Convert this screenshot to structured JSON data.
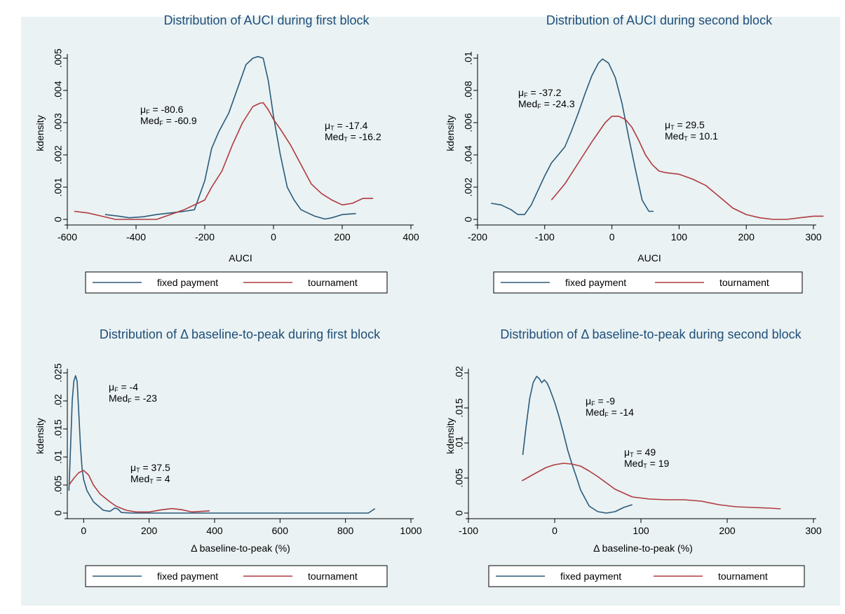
{
  "colors": {
    "fixed": "#2b5a7a",
    "tournament": "#b03a40",
    "background": "#eaf2f3",
    "title": "#1f4e79"
  },
  "chart_data": [
    {
      "type": "line",
      "title": "Distribution of AUCI during first block",
      "xlabel": "AUCI",
      "ylabel": "kdensity",
      "xlim": [
        -600,
        400
      ],
      "ylim": [
        0,
        0.005
      ],
      "xticks": [
        -600,
        -400,
        -200,
        0,
        200,
        400
      ],
      "xtick_labels": [
        "-600",
        "-400",
        "-200",
        "0",
        "200",
        "400"
      ],
      "yticks": [
        0,
        0.001,
        0.002,
        0.003,
        0.004,
        0.005
      ],
      "ytick_labels": [
        "0",
        ".001",
        ".002",
        ".003",
        ".004",
        ".005"
      ],
      "legend": "bottom",
      "series": [
        {
          "name": "fixed payment",
          "color_key": "fixed",
          "x": [
            -490,
            -450,
            -420,
            -380,
            -340,
            -300,
            -260,
            -230,
            -200,
            -180,
            -160,
            -130,
            -100,
            -80,
            -60,
            -45,
            -30,
            -15,
            0,
            20,
            40,
            60,
            80,
            100,
            120,
            150,
            170,
            200,
            240
          ],
          "y": [
            0.00015,
            0.0001,
            5e-05,
            8e-05,
            0.00015,
            0.0002,
            0.00025,
            0.0003,
            0.0012,
            0.0022,
            0.0027,
            0.0033,
            0.0042,
            0.0048,
            0.005,
            0.00505,
            0.005,
            0.0043,
            0.0032,
            0.002,
            0.001,
            0.0006,
            0.0003,
            0.0002,
            0.0001,
            1e-05,
            5e-05,
            0.00015,
            0.00018
          ]
        },
        {
          "name": "tournament",
          "color_key": "tournament",
          "x": [
            -580,
            -540,
            -500,
            -460,
            -420,
            -380,
            -340,
            -300,
            -260,
            -220,
            -200,
            -180,
            -150,
            -120,
            -90,
            -60,
            -40,
            -30,
            -15,
            0,
            20,
            50,
            80,
            110,
            140,
            170,
            200,
            230,
            260,
            290
          ],
          "y": [
            0.00025,
            0.0002,
            0.0001,
            0.0,
            0.0,
            0.0,
            0.0,
            0.00015,
            0.0003,
            0.0005,
            0.0006,
            0.001,
            0.0015,
            0.0023,
            0.003,
            0.0035,
            0.0036,
            0.00362,
            0.0034,
            0.0031,
            0.0028,
            0.0023,
            0.0017,
            0.0011,
            0.0008,
            0.0006,
            0.00045,
            0.0005,
            0.00065,
            0.00065
          ]
        }
      ],
      "annotations": [
        {
          "mu": "μ",
          "sub": "F",
          "val": " = -80.6",
          "med": "Med",
          "msub": "F",
          "mval": " = -60.9"
        },
        {
          "mu": "μ",
          "sub": "T",
          "val": " = -17.4",
          "med": "Med",
          "msub": "T",
          "mval": " = -16.2"
        }
      ]
    },
    {
      "type": "line",
      "title": "Distribution of AUCI during second block",
      "xlabel": "AUCI",
      "ylabel": "kdensity",
      "xlim": [
        -200,
        300
      ],
      "ylim": [
        0,
        0.01
      ],
      "xticks": [
        -200,
        -100,
        0,
        100,
        200,
        300
      ],
      "xtick_labels": [
        "-200",
        "-100",
        "0",
        "100",
        "200",
        "300"
      ],
      "yticks": [
        0,
        0.002,
        0.004,
        0.006,
        0.008,
        0.01
      ],
      "ytick_labels": [
        "0",
        ".002",
        ".004",
        ".006",
        ".008",
        ".01"
      ],
      "legend": "bottom",
      "series": [
        {
          "name": "fixed payment",
          "color_key": "fixed",
          "x": [
            -180,
            -165,
            -150,
            -140,
            -130,
            -120,
            -110,
            -100,
            -90,
            -80,
            -70,
            -60,
            -50,
            -40,
            -30,
            -20,
            -14,
            -5,
            5,
            15,
            25,
            35,
            45,
            55,
            62
          ],
          "y": [
            0.001,
            0.0009,
            0.0006,
            0.0003,
            0.0003,
            0.0009,
            0.0018,
            0.0027,
            0.0035,
            0.004,
            0.0045,
            0.0055,
            0.0066,
            0.0078,
            0.0089,
            0.0097,
            0.00995,
            0.0097,
            0.0088,
            0.0072,
            0.0051,
            0.0031,
            0.0012,
            0.0005,
            0.0005
          ]
        },
        {
          "name": "tournament",
          "color_key": "tournament",
          "x": [
            -90,
            -70,
            -50,
            -30,
            -10,
            0,
            10,
            20,
            30,
            40,
            50,
            60,
            70,
            80,
            100,
            120,
            140,
            160,
            180,
            200,
            220,
            240,
            260,
            280,
            300,
            315
          ],
          "y": [
            0.0012,
            0.0022,
            0.0035,
            0.0048,
            0.006,
            0.0064,
            0.0064,
            0.0062,
            0.0057,
            0.0049,
            0.004,
            0.0034,
            0.003,
            0.0029,
            0.0028,
            0.0025,
            0.0021,
            0.0014,
            0.0007,
            0.0003,
            0.0001,
            0.0,
            0.0,
            0.0001,
            0.0002,
            0.0002
          ]
        }
      ],
      "annotations": [
        {
          "mu": "μ",
          "sub": "F",
          "val": " = -37.2",
          "med": "Med",
          "msub": "F",
          "mval": " = -24.3"
        },
        {
          "mu": "μ",
          "sub": "T",
          "val": " = 29.5",
          "med": "Med",
          "msub": "T",
          "mval": " = 10.1"
        }
      ]
    },
    {
      "type": "line",
      "title": "Distribution of Δ baseline-to-peak during first block",
      "xlabel": "Δ baseline-to-peak (%)",
      "ylabel": "kdensity",
      "xlim": [
        -50,
        1000
      ],
      "ylim": [
        0,
        0.025
      ],
      "xticks": [
        0,
        200,
        400,
        600,
        800,
        1000
      ],
      "xtick_labels": [
        "0",
        "200",
        "400",
        "600",
        "800",
        "1000"
      ],
      "yticks": [
        0,
        0.005,
        0.01,
        0.015,
        0.02,
        0.025
      ],
      "ytick_labels": [
        "0",
        ".005",
        ".01",
        ".015",
        ".02",
        ".025"
      ],
      "legend": "bottom",
      "series": [
        {
          "name": "fixed payment",
          "color_key": "fixed",
          "x": [
            -45,
            -40,
            -35,
            -30,
            -25,
            -20,
            -15,
            -10,
            -5,
            0,
            10,
            20,
            30,
            40,
            60,
            80,
            95,
            105,
            115,
            150,
            200,
            300,
            500,
            700,
            870,
            890
          ],
          "y": [
            0.004,
            0.012,
            0.02,
            0.0235,
            0.0245,
            0.0235,
            0.018,
            0.012,
            0.008,
            0.006,
            0.004,
            0.003,
            0.002,
            0.0015,
            0.0005,
            0.0003,
            0.0009,
            0.0007,
            0.0001,
            0.0,
            0.0,
            0.0,
            0.0,
            0.0,
            0.0,
            0.0008
          ]
        },
        {
          "name": "tournament",
          "color_key": "tournament",
          "x": [
            -45,
            -30,
            -15,
            0,
            15,
            30,
            50,
            80,
            100,
            130,
            160,
            200,
            240,
            270,
            300,
            330,
            360,
            385
          ],
          "y": [
            0.005,
            0.0062,
            0.0072,
            0.0076,
            0.0068,
            0.005,
            0.0034,
            0.002,
            0.0012,
            0.0005,
            0.0002,
            0.0002,
            0.0006,
            0.0008,
            0.0006,
            0.0002,
            0.0003,
            0.0004
          ]
        }
      ],
      "annotations": [
        {
          "mu": "μ",
          "sub": "F",
          "val": " = -4",
          "med": "Med",
          "msub": "F",
          "mval": " = -23"
        },
        {
          "mu": "μ",
          "sub": "T",
          "val": " = 37.5",
          "med": "Med",
          "msub": "T",
          "mval": " = 4"
        }
      ]
    },
    {
      "type": "line",
      "title": "Distribution of Δ baseline-to-peak during second block",
      "xlabel": "Δ baseline-to-peak (%)",
      "ylabel": "kdensity",
      "xlim": [
        -100,
        300
      ],
      "ylim": [
        0,
        0.02
      ],
      "xticks": [
        -100,
        0,
        100,
        200,
        300
      ],
      "xtick_labels": [
        "-100",
        "0",
        "100",
        "200",
        "300"
      ],
      "yticks": [
        0,
        0.005,
        0.01,
        0.015,
        0.02
      ],
      "ytick_labels": [
        "0",
        ".005",
        ".01",
        ".015",
        ".02"
      ],
      "legend": "bottom",
      "series": [
        {
          "name": "fixed payment",
          "color_key": "fixed",
          "x": [
            -37,
            -33,
            -29,
            -25,
            -21,
            -18,
            -15,
            -12,
            -9,
            -6,
            -3,
            0,
            5,
            10,
            15,
            20,
            25,
            30,
            40,
            50,
            60,
            70,
            80,
            90
          ],
          "y": [
            0.0083,
            0.0125,
            0.0163,
            0.0186,
            0.0195,
            0.0192,
            0.0186,
            0.019,
            0.0186,
            0.0178,
            0.0168,
            0.0158,
            0.0138,
            0.0115,
            0.009,
            0.007,
            0.0052,
            0.0033,
            0.001,
            0.0002,
            0.0,
            0.0002,
            0.0008,
            0.0012
          ]
        },
        {
          "name": "tournament",
          "color_key": "tournament",
          "x": [
            -38,
            -25,
            -10,
            0,
            10,
            20,
            30,
            40,
            50,
            60,
            70,
            90,
            110,
            130,
            150,
            170,
            190,
            210,
            230,
            250,
            262
          ],
          "y": [
            0.0046,
            0.0055,
            0.0065,
            0.0069,
            0.0071,
            0.007,
            0.0067,
            0.006,
            0.0052,
            0.0043,
            0.0034,
            0.0023,
            0.002,
            0.0019,
            0.0019,
            0.0017,
            0.0012,
            0.0009,
            0.0008,
            0.0007,
            0.0006
          ]
        }
      ],
      "annotations": [
        {
          "mu": "μ",
          "sub": "F",
          "val": " = -9",
          "med": "Med",
          "msub": "F",
          "mval": " = -14"
        },
        {
          "mu": "μ",
          "sub": "T",
          "val": " = 49",
          "med": "Med",
          "msub": "T",
          "mval": " = 19"
        }
      ]
    }
  ]
}
